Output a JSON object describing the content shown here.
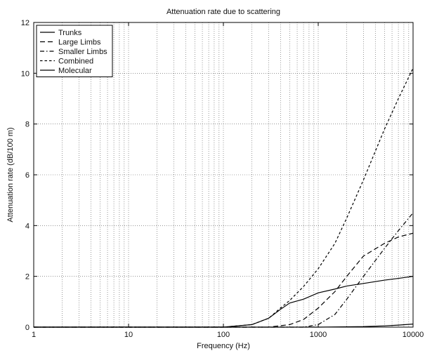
{
  "chart_data": {
    "type": "line",
    "title": "Attenuation rate due to scattering",
    "xlabel": "Frequency (Hz)",
    "ylabel": "Attenuation rate (dB/100 m)",
    "xscale": "log",
    "xlim": [
      1,
      10000
    ],
    "ylim": [
      0,
      12
    ],
    "xticks": [
      1,
      10,
      100,
      1000,
      10000
    ],
    "xtick_labels": [
      "1",
      "10",
      "100",
      "1000",
      "10000"
    ],
    "yticks": [
      0,
      2,
      4,
      6,
      8,
      10,
      12
    ],
    "ytick_labels": [
      "0",
      "2",
      "4",
      "6",
      "8",
      "10",
      "12"
    ],
    "grid": true,
    "legend_position": "top-left",
    "series": [
      {
        "name": "Trunks",
        "color": "#000000",
        "dash": "solid",
        "points": [
          [
            1,
            0
          ],
          [
            100,
            0
          ],
          [
            200,
            0.1
          ],
          [
            300,
            0.35
          ],
          [
            400,
            0.7
          ],
          [
            500,
            0.95
          ],
          [
            700,
            1.1
          ],
          [
            1000,
            1.35
          ],
          [
            1500,
            1.5
          ],
          [
            2000,
            1.62
          ],
          [
            3000,
            1.72
          ],
          [
            5000,
            1.85
          ],
          [
            7000,
            1.92
          ],
          [
            10000,
            2.0
          ]
        ]
      },
      {
        "name": "Large Limbs",
        "color": "#000000",
        "dash": "long-dash",
        "points": [
          [
            1,
            0
          ],
          [
            300,
            0
          ],
          [
            500,
            0.1
          ],
          [
            700,
            0.3
          ],
          [
            1000,
            0.75
          ],
          [
            1500,
            1.4
          ],
          [
            2000,
            2.0
          ],
          [
            3000,
            2.8
          ],
          [
            5000,
            3.3
          ],
          [
            7000,
            3.55
          ],
          [
            10000,
            3.7
          ]
        ]
      },
      {
        "name": "Smaller Limbs",
        "color": "#000000",
        "dash": "dash-dot",
        "points": [
          [
            1,
            0
          ],
          [
            700,
            0
          ],
          [
            1000,
            0.1
          ],
          [
            1500,
            0.5
          ],
          [
            2000,
            1.1
          ],
          [
            3000,
            2.0
          ],
          [
            5000,
            3.1
          ],
          [
            7000,
            3.8
          ],
          [
            10000,
            4.5
          ]
        ]
      },
      {
        "name": "Combined",
        "color": "#000000",
        "dash": "short-dash",
        "points": [
          [
            1,
            0
          ],
          [
            100,
            0
          ],
          [
            200,
            0.1
          ],
          [
            300,
            0.35
          ],
          [
            400,
            0.75
          ],
          [
            500,
            1.05
          ],
          [
            700,
            1.6
          ],
          [
            1000,
            2.3
          ],
          [
            1500,
            3.3
          ],
          [
            2000,
            4.3
          ],
          [
            3000,
            5.8
          ],
          [
            5000,
            7.8
          ],
          [
            7000,
            9.0
          ],
          [
            10000,
            10.2
          ]
        ]
      },
      {
        "name": "Molecular",
        "color": "#000000",
        "dash": "solid",
        "points": [
          [
            1,
            0
          ],
          [
            1000,
            0
          ],
          [
            3000,
            0.02
          ],
          [
            5000,
            0.05
          ],
          [
            7000,
            0.08
          ],
          [
            10000,
            0.12
          ]
        ]
      }
    ]
  }
}
